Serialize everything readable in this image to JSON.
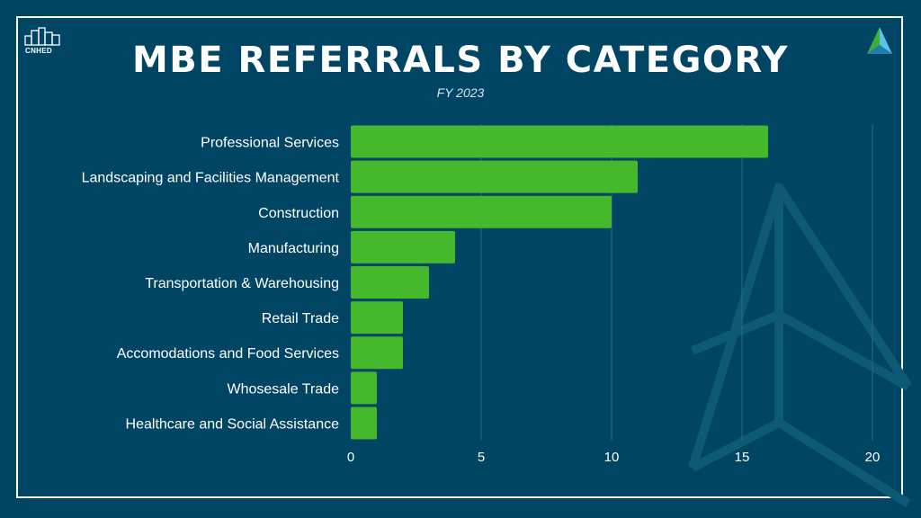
{
  "header": {
    "title": "MBE REFERRALS BY CATEGORY",
    "subtitle": "FY 2023",
    "logo_left_text": "CNHED"
  },
  "colors": {
    "background": "#004563",
    "bar": "#45b82c",
    "grid": "#2b6b86",
    "text": "#ffffff"
  },
  "chart_data": {
    "type": "bar",
    "orientation": "horizontal",
    "title": "MBE REFERRALS BY CATEGORY",
    "subtitle": "FY 2023",
    "categories": [
      "Professional Services",
      "Landscaping and Facilities Management",
      "Construction",
      "Manufacturing",
      "Transportation & Warehousing",
      "Retail Trade",
      "Accomodations and Food Services",
      "Whosesale Trade",
      "Healthcare and Social Assistance"
    ],
    "values": [
      16,
      11,
      10,
      4,
      3,
      2,
      2,
      1,
      1
    ],
    "xlim": [
      0,
      20
    ],
    "xticks": [
      0,
      5,
      10,
      15,
      20
    ],
    "grid": "vertical",
    "legend": "none"
  }
}
